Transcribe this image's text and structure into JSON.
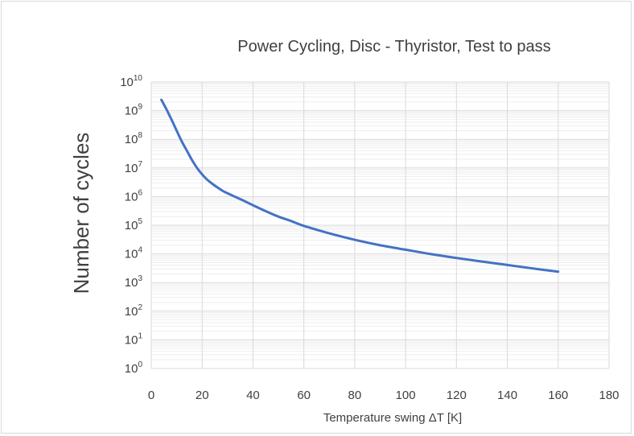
{
  "chart_data": {
    "type": "line",
    "title": "Power Cycling, Disc - Thyristor, Test to pass",
    "xlabel": "Temperature swing ΔT [K]",
    "ylabel": "Number of cycles",
    "xlim": [
      0,
      180
    ],
    "ylim": [
      1,
      10000000000
    ],
    "yscale": "log",
    "grid": true,
    "legend": "none",
    "xticks": [
      "0",
      "20",
      "40",
      "60",
      "80",
      "100",
      "120",
      "140",
      "160",
      "180"
    ],
    "yticks": [
      {
        "base": "10",
        "exp": "0"
      },
      {
        "base": "10",
        "exp": "1"
      },
      {
        "base": "10",
        "exp": "2"
      },
      {
        "base": "10",
        "exp": "3"
      },
      {
        "base": "10",
        "exp": "4"
      },
      {
        "base": "10",
        "exp": "5"
      },
      {
        "base": "10",
        "exp": "6"
      },
      {
        "base": "10",
        "exp": "7"
      },
      {
        "base": "10",
        "exp": "8"
      },
      {
        "base": "10",
        "exp": "9"
      },
      {
        "base": "10",
        "exp": "10"
      }
    ],
    "series": [
      {
        "color": "#4472c4",
        "x": [
          4,
          6,
          8,
          10,
          12,
          14,
          16,
          18,
          20,
          22,
          24,
          26,
          28,
          30,
          35,
          40,
          45,
          50,
          55,
          60,
          70,
          80,
          90,
          100,
          110,
          120,
          130,
          140,
          150,
          160
        ],
        "y": [
          2400000000,
          1100000000,
          480000000,
          200000000,
          85000000,
          40000000,
          19000000,
          10000000,
          6000000,
          3900000,
          2800000,
          2100000,
          1600000,
          1300000,
          820000,
          500000,
          310000,
          200000,
          140000,
          95000,
          52000,
          31000,
          20000,
          14000,
          9800,
          7200,
          5400,
          4100,
          3100,
          2400
        ]
      }
    ]
  }
}
